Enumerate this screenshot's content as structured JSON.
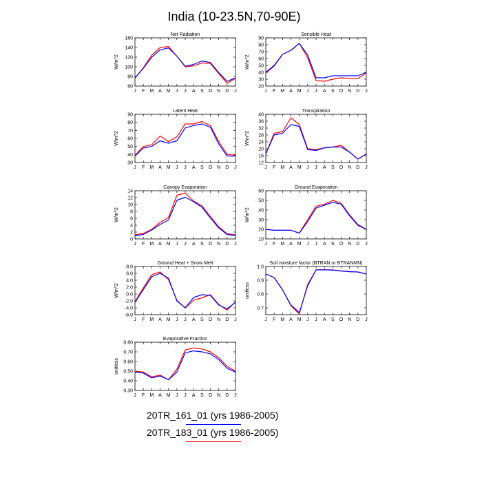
{
  "title": "India (10-23.5N,70-90E)",
  "months": [
    "J",
    "F",
    "M",
    "A",
    "M",
    "J",
    "J",
    "A",
    "S",
    "O",
    "N",
    "D",
    "J"
  ],
  "legend": [
    {
      "label": "20TR_161_01 (yrs 1986-2005)",
      "color": "#0000ff"
    },
    {
      "label": "20TR_183_01 (yrs 1986-2005)",
      "color": "#ff0000"
    }
  ],
  "colors": {
    "red": "#ff0000",
    "blue": "#0000ff"
  },
  "chart_data": [
    {
      "type": "line",
      "title": "Net Radiation",
      "ylabel": "W/m^2",
      "ylim": [
        60,
        160
      ],
      "yticks": [
        60,
        80,
        100,
        120,
        140,
        160
      ],
      "yticklabels": [
        "60",
        "80",
        "100",
        "120",
        "140",
        "160"
      ],
      "series": [
        {
          "color": "#ff0000",
          "values": [
            76,
            98,
            124,
            140,
            142,
            122,
            100,
            102,
            108,
            107,
            86,
            66,
            76
          ]
        },
        {
          "color": "#0000ff",
          "values": [
            77,
            97,
            120,
            135,
            139,
            122,
            101,
            105,
            112,
            109,
            88,
            70,
            77
          ]
        }
      ]
    },
    {
      "type": "line",
      "title": "Sensible Heat",
      "ylabel": "W/m^2",
      "ylim": [
        20,
        90
      ],
      "yticks": [
        20,
        30,
        40,
        50,
        60,
        70,
        80,
        90
      ],
      "yticklabels": [
        "20",
        "30",
        "40",
        "50",
        "60",
        "70",
        "80",
        "90"
      ],
      "series": [
        {
          "color": "#ff0000",
          "values": [
            39,
            49,
            66,
            72,
            82,
            61,
            28,
            27,
            30,
            32,
            31,
            31,
            39
          ]
        },
        {
          "color": "#0000ff",
          "values": [
            40,
            50,
            66,
            72,
            82,
            65,
            32,
            32,
            35,
            35,
            35,
            35,
            40
          ]
        }
      ]
    },
    {
      "type": "line",
      "title": "Latent Heat",
      "ylabel": "W/m^2",
      "ylim": [
        30,
        90
      ],
      "yticks": [
        30,
        40,
        50,
        60,
        70,
        80,
        90
      ],
      "yticklabels": [
        "30",
        "40",
        "50",
        "60",
        "70",
        "80",
        "90"
      ],
      "series": [
        {
          "color": "#ff0000",
          "values": [
            39,
            50,
            52,
            63,
            56,
            62,
            78,
            78,
            81,
            76,
            56,
            40,
            39
          ]
        },
        {
          "color": "#0000ff",
          "values": [
            38,
            48,
            50,
            57,
            54,
            57,
            73,
            76,
            78,
            74,
            53,
            38,
            38
          ]
        }
      ]
    },
    {
      "type": "line",
      "title": "Transpiration",
      "ylabel": "W/m^2",
      "ylim": [
        12,
        40
      ],
      "yticks": [
        12,
        16,
        20,
        24,
        28,
        32,
        36,
        40
      ],
      "yticklabels": [
        "12",
        "16",
        "20",
        "24",
        "28",
        "32",
        "36",
        "40"
      ],
      "series": [
        {
          "color": "#ff0000",
          "values": [
            17,
            29,
            30,
            38,
            34,
            20,
            19.5,
            20.5,
            21,
            22,
            18,
            14,
            17
          ]
        },
        {
          "color": "#0000ff",
          "values": [
            17,
            28,
            29,
            34,
            33,
            19.5,
            19,
            20.5,
            21,
            21,
            18,
            14,
            17
          ]
        }
      ]
    },
    {
      "type": "line",
      "title": "Canopy Evaporation",
      "ylabel": "W/m^2",
      "ylim": [
        0,
        14
      ],
      "yticks": [
        0,
        2,
        4,
        6,
        8,
        10,
        12,
        14
      ],
      "yticklabels": [
        "0",
        "2",
        "4",
        "6",
        "8",
        "10",
        "12",
        "14"
      ],
      "series": [
        {
          "color": "#ff0000",
          "values": [
            1.2,
            1.6,
            2.8,
            4.8,
            6.2,
            12.7,
            13.3,
            11,
            9.6,
            6.5,
            3.5,
            1.5,
            1.2
          ]
        },
        {
          "color": "#0000ff",
          "values": [
            0.9,
            1.3,
            2.6,
            4.2,
            5.5,
            11.2,
            12.1,
            10.8,
            9.2,
            6.1,
            3.2,
            1.3,
            1.0
          ]
        }
      ]
    },
    {
      "type": "line",
      "title": "Ground Evaporation",
      "ylabel": "W/m^2",
      "ylim": [
        10,
        60
      ],
      "yticks": [
        10,
        20,
        30,
        40,
        50,
        60
      ],
      "yticklabels": [
        "10",
        "20",
        "30",
        "40",
        "50",
        "60"
      ],
      "series": [
        {
          "color": "#ff0000",
          "values": [
            20,
            19,
            19,
            19,
            16,
            30,
            44,
            46,
            50,
            47,
            35,
            25,
            20
          ]
        },
        {
          "color": "#0000ff",
          "values": [
            20,
            19,
            19,
            19,
            16,
            28,
            42,
            45,
            48,
            46,
            34,
            24,
            20
          ]
        }
      ]
    },
    {
      "type": "line",
      "title": "Ground Heat + Snow Melt",
      "ylabel": "W/m^2",
      "ylim": [
        -6,
        8
      ],
      "yticks": [
        -6,
        -4,
        -2,
        0,
        2,
        4,
        6,
        8
      ],
      "yticklabels": [
        "-6.0",
        "-4.0",
        "-2.0",
        "0.0",
        "2.0",
        "4.0",
        "6.0",
        "8.0"
      ],
      "series": [
        {
          "color": "#ff0000",
          "values": [
            -2.2,
            1.8,
            5.6,
            6.4,
            4.2,
            -1.8,
            -4.1,
            -1.8,
            -1.1,
            -0.2,
            -3.0,
            -4.7,
            -2.2
          ]
        },
        {
          "color": "#0000ff",
          "values": [
            -2.4,
            1.3,
            5.0,
            6.0,
            4.6,
            -2.0,
            -4.0,
            -1.0,
            -0.2,
            -0.4,
            -3.2,
            -4.3,
            -2.4
          ]
        }
      ]
    },
    {
      "type": "line",
      "title": "Soil moisture factor (BTRAN or BTRANMN)",
      "ylabel": "unitless",
      "ylim": [
        0.65,
        1.0
      ],
      "yticks": [
        0.7,
        0.8,
        0.9,
        1.0
      ],
      "yticklabels": [
        "0.7",
        "0.8",
        "0.9",
        "1.0"
      ],
      "series": [
        {
          "color": "#ff0000",
          "values": [
            0.945,
            0.92,
            0.83,
            0.715,
            0.655,
            0.87,
            0.975,
            0.977,
            0.975,
            0.968,
            0.963,
            0.96,
            0.945
          ]
        },
        {
          "color": "#0000ff",
          "values": [
            0.945,
            0.92,
            0.83,
            0.72,
            0.665,
            0.86,
            0.975,
            0.976,
            0.973,
            0.967,
            0.962,
            0.96,
            0.945
          ]
        }
      ]
    },
    {
      "type": "line",
      "title": "Evaporative Fraction",
      "ylabel": "unitless",
      "ylim": [
        0.3,
        0.8
      ],
      "yticks": [
        0.3,
        0.4,
        0.5,
        0.6,
        0.7,
        0.8
      ],
      "yticklabels": [
        "0.30",
        "0.40",
        "0.50",
        "0.60",
        "0.70",
        "0.80"
      ],
      "series": [
        {
          "color": "#ff0000",
          "values": [
            0.5,
            0.49,
            0.44,
            0.46,
            0.41,
            0.52,
            0.72,
            0.74,
            0.73,
            0.7,
            0.64,
            0.55,
            0.5
          ]
        },
        {
          "color": "#0000ff",
          "values": [
            0.49,
            0.48,
            0.43,
            0.45,
            0.41,
            0.49,
            0.69,
            0.71,
            0.7,
            0.68,
            0.62,
            0.53,
            0.49
          ]
        }
      ]
    }
  ]
}
